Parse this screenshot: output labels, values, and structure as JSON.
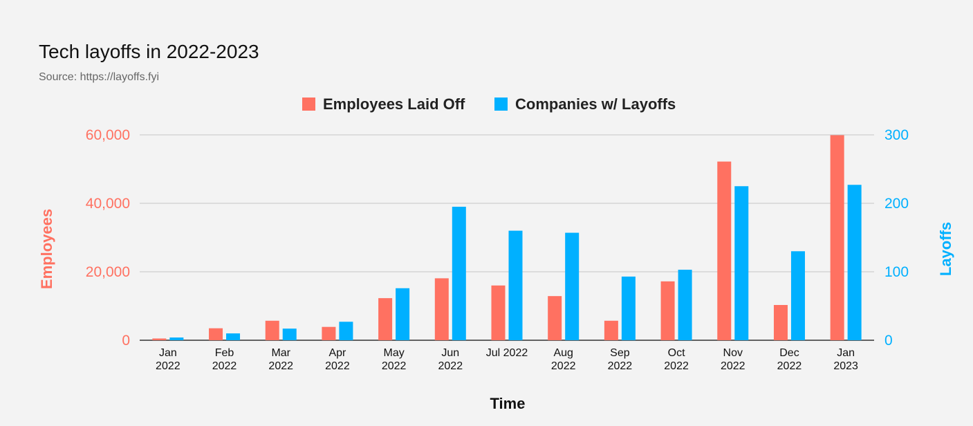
{
  "chart_data": {
    "type": "bar",
    "title": "Tech layoffs in 2022-2023",
    "subtitle": "Source: https://layoffs.fyi",
    "xlabel": "Time",
    "categories": [
      [
        "Jan",
        "2022"
      ],
      [
        "Feb",
        "2022"
      ],
      [
        "Mar",
        "2022"
      ],
      [
        "Apr",
        "2022"
      ],
      [
        "May",
        "2022"
      ],
      [
        "Jun",
        "2022"
      ],
      [
        "Jul 2022"
      ],
      [
        "Aug",
        "2022"
      ],
      [
        "Sep",
        "2022"
      ],
      [
        "Oct",
        "2022"
      ],
      [
        "Nov",
        "2022"
      ],
      [
        "Dec",
        "2022"
      ],
      [
        "Jan",
        "2023"
      ]
    ],
    "series": [
      {
        "name": "Employees Laid Off",
        "axis": "left",
        "color": "#ff7161",
        "values": [
          510,
          3500,
          5700,
          3900,
          12300,
          18100,
          16000,
          12900,
          5700,
          17200,
          52200,
          10300,
          59900
        ]
      },
      {
        "name": "Companies w/ Layoffs",
        "axis": "right",
        "color": "#00b0ff",
        "values": [
          4,
          10,
          17,
          27,
          76,
          195,
          160,
          157,
          93,
          103,
          225,
          130,
          227
        ]
      }
    ],
    "y_left": {
      "label": "Employees",
      "range": [
        0,
        60000
      ],
      "ticks": [
        0,
        20000,
        40000,
        60000
      ],
      "tick_labels": [
        "0",
        "20,000",
        "40,000",
        "60,000"
      ],
      "color": "#ff7161"
    },
    "y_right": {
      "label": "Layoffs",
      "range": [
        0,
        300
      ],
      "ticks": [
        0,
        100,
        200,
        300
      ],
      "tick_labels": [
        "0",
        "100",
        "200",
        "300"
      ],
      "color": "#00b0ff"
    },
    "grid": true,
    "legend_position": "top-center"
  }
}
